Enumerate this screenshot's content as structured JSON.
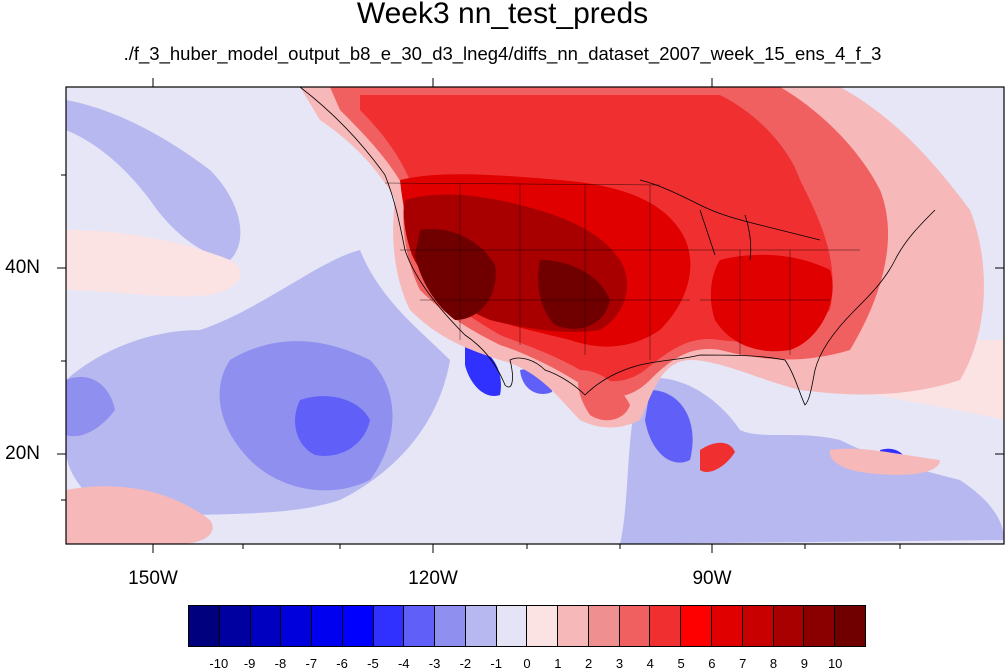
{
  "title": "Week3 nn_test_preds",
  "subtitle": "./f_3_huber_model_output_b8_e_30_d3_lneg4/diffs_nn_dataset_2007_week_15_ens_4_f_3",
  "lon_labels": [
    "150W",
    "120W",
    "90W"
  ],
  "lat_labels": [
    "40N",
    "20N"
  ],
  "colorbar": {
    "labels": [
      "-10",
      "-9",
      "-8",
      "-7",
      "-6",
      "-5",
      "-4",
      "-3",
      "-2",
      "-1",
      "0",
      "1",
      "2",
      "3",
      "4",
      "5",
      "6",
      "7",
      "8",
      "9",
      "10"
    ],
    "colors": [
      "#00007f",
      "#0000a0",
      "#0000c0",
      "#0000dc",
      "#0000f0",
      "#0000ff",
      "#3030ff",
      "#6060f8",
      "#8f8ff0",
      "#b8b8f0",
      "#e4e4f6",
      "#fbe3e3",
      "#f6b8b8",
      "#f08f8f",
      "#f06060",
      "#f03030",
      "#ff0000",
      "#e00000",
      "#c80000",
      "#a80000",
      "#8a0000",
      "#700000"
    ]
  },
  "map": {
    "background_color": "#e6e6f7",
    "land_outline_color": "#000000"
  }
}
